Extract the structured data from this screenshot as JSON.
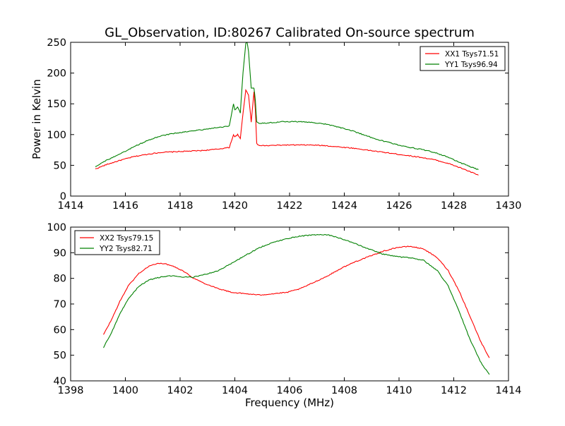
{
  "figure": {
    "title": "GL_Observation, ID:80267 Calibrated On-source spectrum"
  },
  "chart_data": [
    {
      "type": "line",
      "title": "GL_Observation, ID:80267 Calibrated On-source spectrum",
      "xlabel": "",
      "ylabel": "Power in Kelvin",
      "xlim": [
        1414,
        1430
      ],
      "ylim": [
        0,
        250
      ],
      "xticks": [
        "1414",
        "1416",
        "1418",
        "1420",
        "1422",
        "1424",
        "1426",
        "1428",
        "1430"
      ],
      "yticks": [
        "0",
        "50",
        "100",
        "150",
        "200",
        "250"
      ],
      "grid": false,
      "legend_position": "top-right",
      "series": [
        {
          "name": "XX1 Tsys71.51",
          "color": "#ff0000",
          "x": [
            1414.9,
            1415.3,
            1415.8,
            1416.3,
            1416.8,
            1417.3,
            1417.8,
            1418.3,
            1418.8,
            1419.3,
            1419.8,
            1419.95,
            1420.0,
            1420.1,
            1420.2,
            1420.3,
            1420.4,
            1420.5,
            1420.6,
            1420.7,
            1420.75,
            1420.8,
            1420.9,
            1421.2,
            1421.8,
            1422.3,
            1422.8,
            1423.3,
            1423.8,
            1424.3,
            1424.8,
            1425.3,
            1425.8,
            1426.3,
            1426.8,
            1427.3,
            1427.8,
            1428.3,
            1428.9
          ],
          "y": [
            44,
            51,
            58,
            64,
            68,
            71,
            72,
            73,
            74,
            76,
            79,
            100,
            96,
            100,
            93,
            135,
            172,
            165,
            120,
            170,
            140,
            85,
            82,
            82,
            83,
            83,
            83,
            82,
            80,
            78,
            75,
            72,
            69,
            66,
            63,
            59,
            53,
            45,
            34
          ]
        },
        {
          "name": "YY1 Tsys96.94",
          "color": "#008000",
          "x": [
            1414.9,
            1415.3,
            1415.8,
            1416.3,
            1416.8,
            1417.3,
            1417.8,
            1418.3,
            1418.8,
            1419.3,
            1419.8,
            1419.95,
            1420.0,
            1420.1,
            1420.2,
            1420.3,
            1420.4,
            1420.45,
            1420.5,
            1420.6,
            1420.7,
            1420.75,
            1420.8,
            1420.9,
            1421.2,
            1421.8,
            1422.3,
            1422.8,
            1423.3,
            1423.8,
            1424.3,
            1424.8,
            1425.3,
            1425.8,
            1426.3,
            1426.8,
            1427.3,
            1427.8,
            1428.3,
            1428.9
          ],
          "y": [
            48,
            58,
            68,
            80,
            90,
            98,
            102,
            105,
            108,
            111,
            114,
            150,
            140,
            145,
            135,
            200,
            248,
            250,
            235,
            175,
            176,
            155,
            120,
            118,
            119,
            121,
            121,
            120,
            117,
            112,
            106,
            98,
            91,
            85,
            80,
            76,
            71,
            63,
            53,
            43
          ]
        }
      ]
    },
    {
      "type": "line",
      "title": "",
      "xlabel": "Frequency (MHz)",
      "ylabel": "",
      "xlim": [
        1398,
        1414
      ],
      "ylim": [
        40,
        100
      ],
      "xticks": [
        "1398",
        "1400",
        "1402",
        "1404",
        "1406",
        "1408",
        "1410",
        "1412",
        "1414"
      ],
      "yticks": [
        "40",
        "50",
        "60",
        "70",
        "80",
        "90",
        "100"
      ],
      "grid": false,
      "legend_position": "top-left",
      "series": [
        {
          "name": "XX2 Tsys79.15",
          "color": "#ff0000",
          "x": [
            1399.2,
            1399.5,
            1399.8,
            1400.1,
            1400.5,
            1400.9,
            1401.3,
            1401.7,
            1402.1,
            1402.5,
            1402.9,
            1403.4,
            1403.9,
            1404.4,
            1404.9,
            1405.4,
            1405.9,
            1406.4,
            1406.9,
            1407.4,
            1407.9,
            1408.4,
            1408.9,
            1409.4,
            1409.9,
            1410.4,
            1410.9,
            1411.4,
            1411.8,
            1412.2,
            1412.6,
            1413.0,
            1413.3
          ],
          "y": [
            58,
            64,
            71,
            77,
            82,
            85,
            86,
            85,
            83,
            80,
            78,
            76,
            74.5,
            74,
            73.5,
            74,
            74.5,
            76,
            78.5,
            81,
            84,
            86.5,
            88.5,
            90.5,
            92,
            92.5,
            91.5,
            88,
            83,
            75,
            65,
            55,
            49
          ]
        },
        {
          "name": "YY2 Tsys82.71",
          "color": "#008000",
          "x": [
            1399.2,
            1399.5,
            1399.8,
            1400.1,
            1400.5,
            1400.9,
            1401.3,
            1401.7,
            1402.1,
            1402.5,
            1402.9,
            1403.4,
            1403.9,
            1404.4,
            1404.9,
            1405.4,
            1405.9,
            1406.4,
            1406.9,
            1407.4,
            1407.9,
            1408.4,
            1408.9,
            1409.4,
            1409.9,
            1410.4,
            1410.9,
            1411.4,
            1411.8,
            1412.2,
            1412.6,
            1413.0,
            1413.3
          ],
          "y": [
            53,
            59,
            66,
            72,
            77,
            79.5,
            80.5,
            81,
            80.5,
            80.5,
            81.5,
            83,
            86,
            89,
            92,
            94,
            95.5,
            96.5,
            97,
            97,
            95.5,
            93.5,
            91.5,
            89.5,
            88.5,
            88,
            87,
            83,
            77,
            67,
            56,
            47,
            42.5
          ]
        }
      ]
    }
  ]
}
